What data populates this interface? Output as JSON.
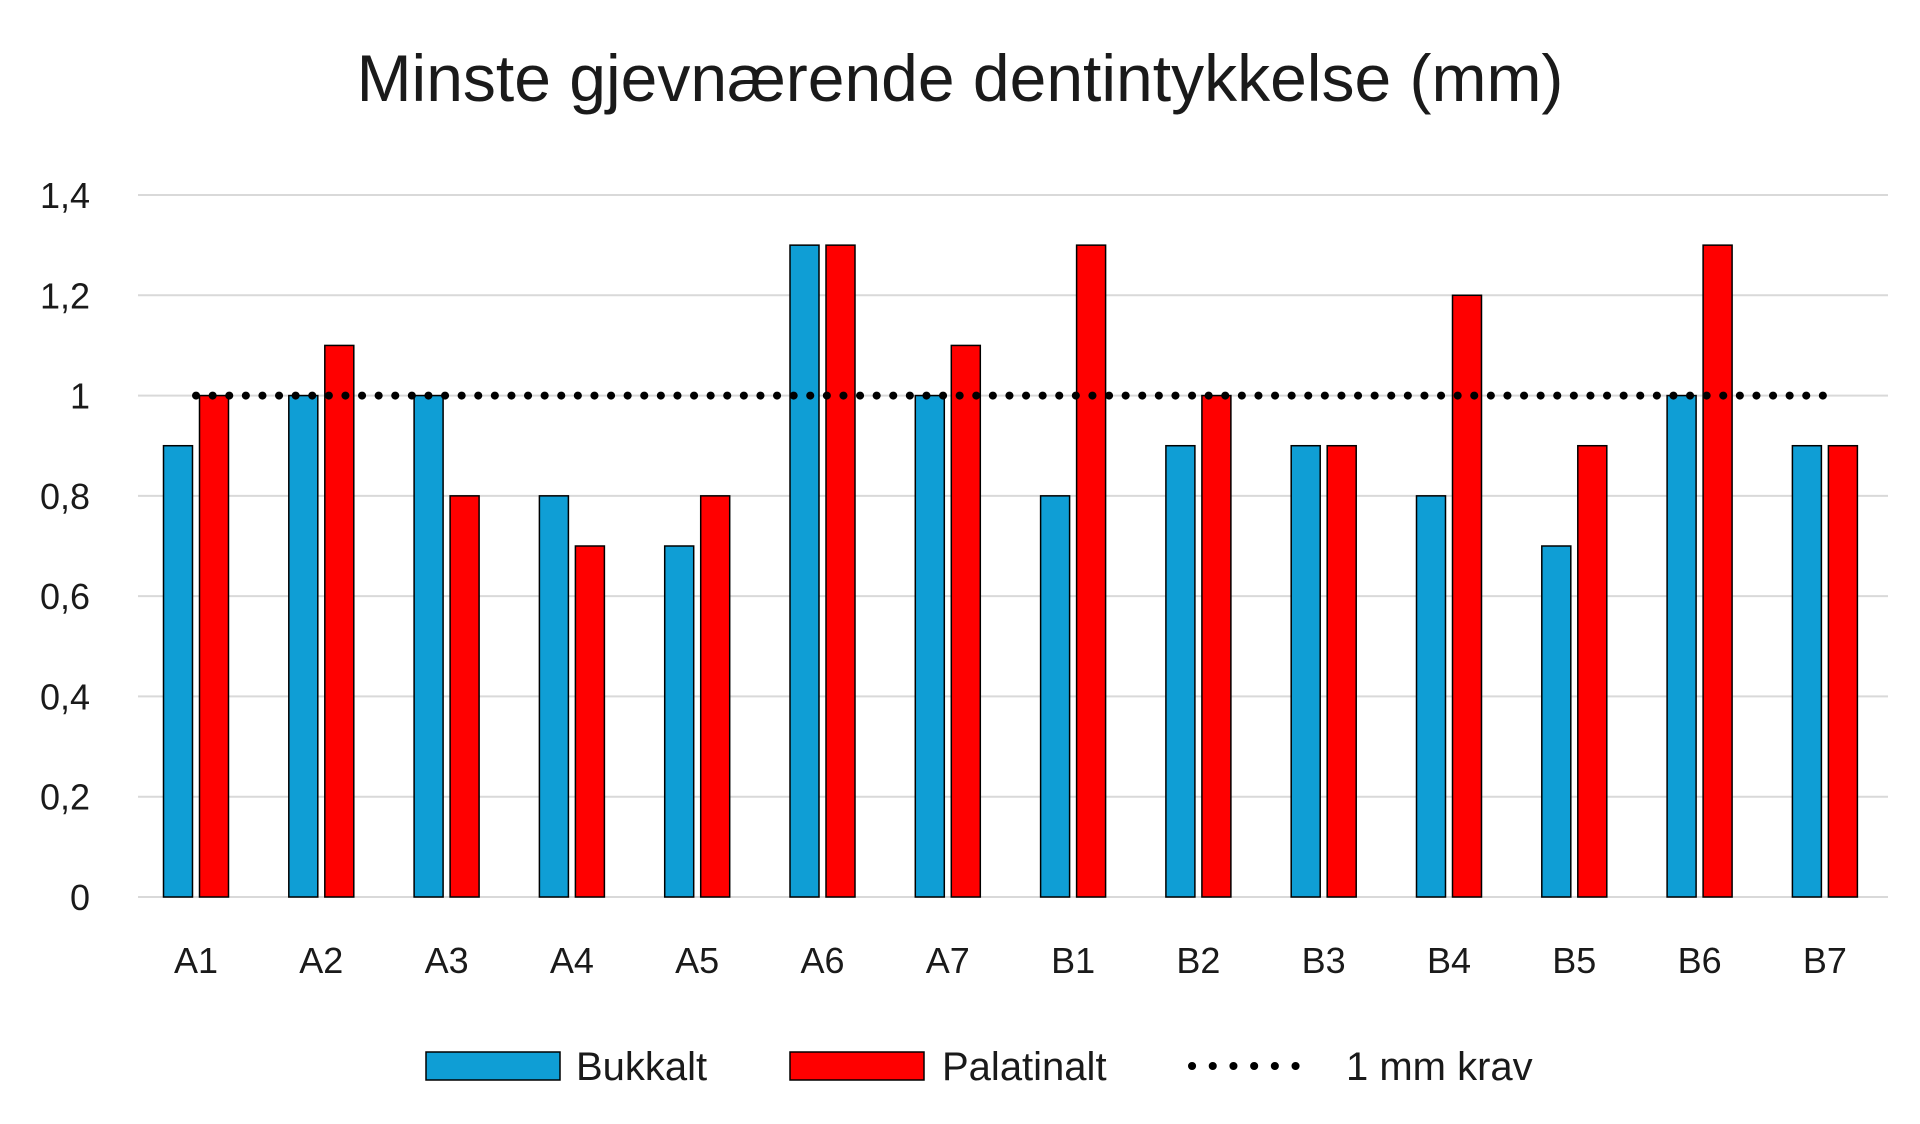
{
  "chart_data": {
    "type": "bar",
    "title": "Minste gjevnærende dentintykkelse (mm)",
    "categories": [
      "A1",
      "A2",
      "A3",
      "A4",
      "A5",
      "A6",
      "A7",
      "B1",
      "B2",
      "B3",
      "B4",
      "B5",
      "B6",
      "B7"
    ],
    "series": [
      {
        "name": "Bukkalt",
        "color": "#0F9ED5",
        "values": [
          0.9,
          1.0,
          1.0,
          0.8,
          0.7,
          1.3,
          1.0,
          0.8,
          0.9,
          0.9,
          0.8,
          0.7,
          1.0,
          0.9
        ]
      },
      {
        "name": "Palatinalt",
        "color": "#FF0000",
        "values": [
          1.0,
          1.1,
          0.8,
          0.7,
          0.8,
          1.3,
          1.1,
          1.3,
          1.0,
          0.9,
          1.2,
          0.9,
          1.3,
          0.9
        ]
      }
    ],
    "reference_line": {
      "name": "1 mm krav",
      "value": 1.0,
      "style": "dotted",
      "color": "#000000",
      "from": "A1",
      "to": "B7"
    },
    "ylim": [
      0,
      1.4
    ],
    "yticks": [
      "0",
      "0,2",
      "0,4",
      "0,6",
      "0,8",
      "1",
      "1,2",
      "1,4"
    ],
    "ytick_values": [
      0,
      0.2,
      0.4,
      0.6,
      0.8,
      1.0,
      1.2,
      1.4
    ],
    "grid": true,
    "legend_position": "bottom"
  }
}
